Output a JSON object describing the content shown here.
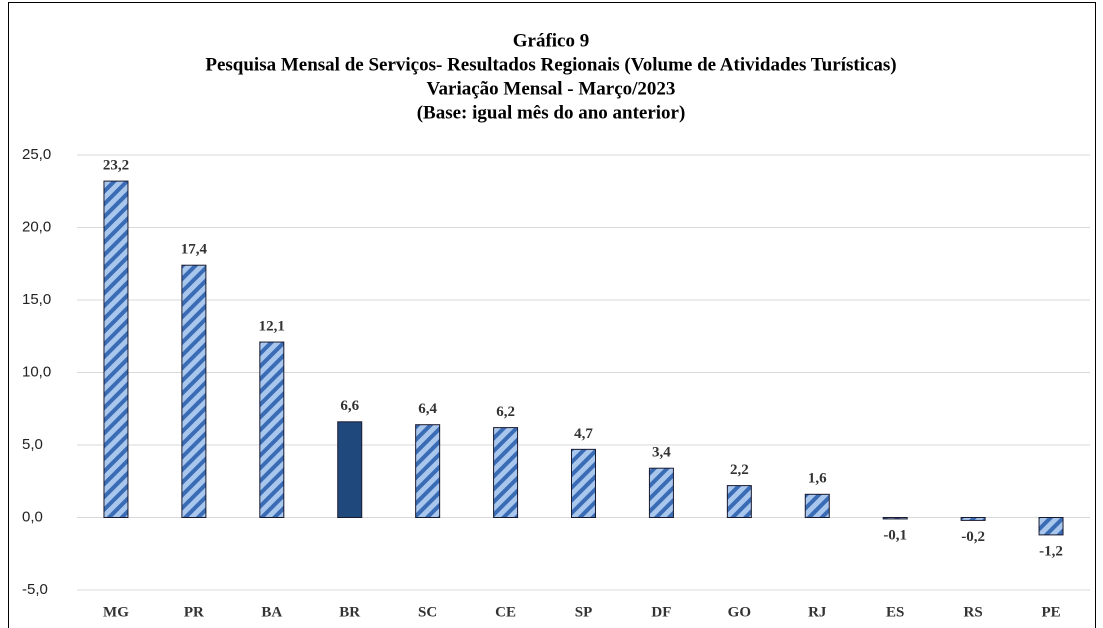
{
  "chart_data": {
    "type": "bar",
    "title": [
      "Gráfico 9",
      "Pesquisa Mensal de Serviços- Resultados Regionais (Volume de Atividades Turísticas)",
      "Variação Mensal - Março/2023",
      "(Base: igual mês do ano anterior)"
    ],
    "categories": [
      "MG",
      "PR",
      "BA",
      "BR",
      "SC",
      "CE",
      "SP",
      "DF",
      "GO",
      "RJ",
      "ES",
      "RS",
      "PE"
    ],
    "values": [
      23.2,
      17.4,
      12.1,
      6.6,
      6.4,
      6.2,
      4.7,
      3.4,
      2.2,
      1.6,
      -0.1,
      -0.2,
      -1.2
    ],
    "value_labels": [
      "23,2",
      "17,4",
      "12,1",
      "6,6",
      "6,4",
      "6,2",
      "4,7",
      "3,4",
      "2,2",
      "1,6",
      "-0,1",
      "-0,2",
      "-1,2"
    ],
    "colors": [
      "#a9c6ec",
      "#a9c6ec",
      "#a9c6ec",
      "#1f487c",
      "#a9c6ec",
      "#a9c6ec",
      "#a9c6ec",
      "#a9c6ec",
      "#a9c6ec",
      "#a9c6ec",
      "#a9c6ec",
      "#a9c6ec",
      "#a9c6ec"
    ],
    "hatch": [
      true,
      true,
      true,
      false,
      true,
      true,
      true,
      true,
      true,
      true,
      true,
      true,
      true
    ],
    "ylim": [
      -5,
      25
    ],
    "yticks": [
      {
        "value": -5,
        "label": "-5,0"
      },
      {
        "value": 0,
        "label": "0,0"
      },
      {
        "value": 5,
        "label": "5,0"
      },
      {
        "value": 10,
        "label": "10,0"
      },
      {
        "value": 15,
        "label": "15,0"
      },
      {
        "value": 20,
        "label": "20,0"
      },
      {
        "value": 25,
        "label": "25,0"
      }
    ],
    "grid": true
  }
}
